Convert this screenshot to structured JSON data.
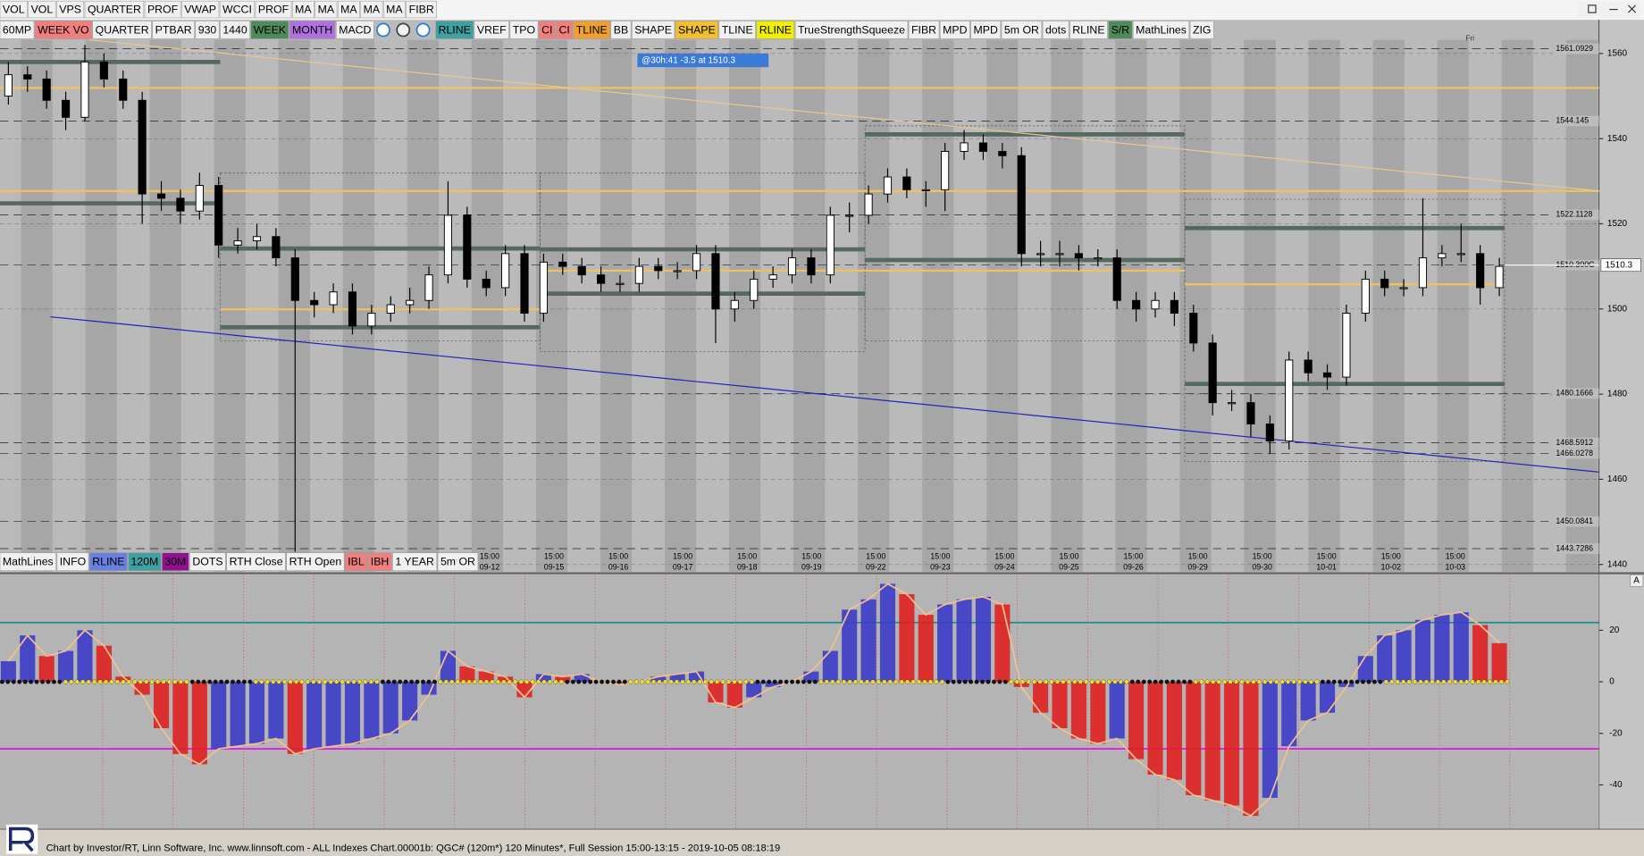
{
  "toolbar_top": [
    {
      "label": "VOL"
    },
    {
      "label": "VOL"
    },
    {
      "label": "VPS"
    },
    {
      "label": "QUARTER"
    },
    {
      "label": "PROF"
    },
    {
      "label": "VWAP"
    },
    {
      "label": "WCCI"
    },
    {
      "label": "PROF"
    },
    {
      "label": "MA"
    },
    {
      "label": "MA"
    },
    {
      "label": "MA"
    },
    {
      "label": "MA"
    },
    {
      "label": "MA"
    },
    {
      "label": "FIBR"
    }
  ],
  "toolbar_main": [
    {
      "label": "60MP"
    },
    {
      "label": "WEEK VO",
      "color": "#f08080"
    },
    {
      "label": "QUARTER"
    },
    {
      "label": "PTBAR"
    },
    {
      "label": "930"
    },
    {
      "label": "1440"
    },
    {
      "label": "WEEK",
      "color": "#4f8a5b"
    },
    {
      "label": "MONTH",
      "color": "#b070e0"
    },
    {
      "label": "MACD"
    },
    {
      "label": "RLINE",
      "color": "#40a0a0"
    },
    {
      "label": "VREF"
    },
    {
      "label": "TPO"
    },
    {
      "label": "CI",
      "color": "#f08080"
    },
    {
      "label": "CI",
      "color": "#f08080"
    },
    {
      "label": "TLINE",
      "color": "#f0a030"
    },
    {
      "label": "BB"
    },
    {
      "label": "SHAPE"
    },
    {
      "label": "SHAPE",
      "color": "#f0c030"
    },
    {
      "label": "TLINE"
    },
    {
      "label": "RLINE",
      "color": "#f0f000"
    },
    {
      "label": "TrueStrengthSqueeze"
    },
    {
      "label": "FIBR"
    },
    {
      "label": "MPD"
    },
    {
      "label": "MPD"
    },
    {
      "label": "5m OR"
    },
    {
      "label": "dots"
    },
    {
      "label": "RLINE"
    },
    {
      "label": "S/R",
      "color": "#4f8a5b"
    },
    {
      "label": "MathLines"
    },
    {
      "label": "ZIG"
    }
  ],
  "toolbar_bottom": [
    {
      "label": "MathLines"
    },
    {
      "label": "INFO"
    },
    {
      "label": "RLINE",
      "color": "#6a80e0"
    },
    {
      "label": "120M",
      "color": "#40a0a0"
    },
    {
      "label": "30M",
      "color": "#901090"
    },
    {
      "label": "DOTS"
    },
    {
      "label": "RTH Close"
    },
    {
      "label": "RTH Open"
    },
    {
      "label": "IBL",
      "color": "#f08080"
    },
    {
      "label": "IBH",
      "color": "#f08080"
    },
    {
      "label": "1 YEAR"
    },
    {
      "label": "5m OR"
    }
  ],
  "annotation": "@30h:41  -3.5 at 1510.3",
  "day_label": "Fri",
  "footer": "Chart by Investor/RT, Linn Software, Inc. www.linnsoft.com - ALL Indexes Chart.00001b: QGC# (120m*) 120 Minutes*, Full Session 15:00-13:15 - 2019-10-05 08:18:19",
  "chart_data": [
    {
      "type": "candlestick",
      "candles": [
        [
          1550,
          1558,
          1548,
          1555
        ],
        [
          1555,
          1557,
          1551,
          1554
        ],
        [
          1554,
          1556,
          1547,
          1549
        ],
        [
          1549,
          1551,
          1542,
          1545
        ],
        [
          1545,
          1562,
          1544,
          1558
        ],
        [
          1558,
          1560,
          1552,
          1554
        ],
        [
          1554,
          1556,
          1547,
          1549
        ],
        [
          1549,
          1551,
          1520,
          1527
        ],
        [
          1527,
          1530,
          1523,
          1526
        ],
        [
          1526,
          1528,
          1520,
          1523
        ],
        [
          1523,
          1532,
          1521,
          1529
        ],
        [
          1529,
          1531,
          1512,
          1515
        ],
        [
          1515,
          1519,
          1513,
          1516
        ],
        [
          1516,
          1520,
          1514,
          1517
        ],
        [
          1517,
          1519,
          1510,
          1512
        ],
        [
          1512,
          1514,
          1443,
          1502
        ],
        [
          1502,
          1504,
          1498,
          1501
        ],
        [
          1501,
          1506,
          1499,
          1504
        ],
        [
          1504,
          1506,
          1494,
          1496
        ],
        [
          1496,
          1501,
          1494,
          1499
        ],
        [
          1499,
          1503,
          1497,
          1501
        ],
        [
          1501,
          1505,
          1499,
          1502
        ],
        [
          1502,
          1510,
          1500,
          1508
        ],
        [
          1508,
          1530,
          1506,
          1522
        ],
        [
          1522,
          1524,
          1505,
          1507
        ],
        [
          1507,
          1509,
          1503,
          1505
        ],
        [
          1505,
          1515,
          1503,
          1513
        ],
        [
          1513,
          1515,
          1497,
          1499
        ],
        [
          1499,
          1513,
          1497,
          1511
        ],
        [
          1511,
          1513,
          1508,
          1510
        ],
        [
          1510,
          1512,
          1506,
          1508
        ],
        [
          1508,
          1510,
          1504,
          1506
        ],
        [
          1506,
          1508,
          1504,
          1506
        ],
        [
          1506,
          1512,
          1504,
          1510
        ],
        [
          1510,
          1512,
          1507,
          1509
        ],
        [
          1509,
          1511,
          1507,
          1509
        ],
        [
          1509,
          1515,
          1507,
          1513
        ],
        [
          1513,
          1515,
          1492,
          1500
        ],
        [
          1500,
          1504,
          1497,
          1502
        ],
        [
          1502,
          1509,
          1500,
          1507
        ],
        [
          1507,
          1510,
          1505,
          1508
        ],
        [
          1508,
          1514,
          1506,
          1512
        ],
        [
          1512,
          1514,
          1506,
          1508
        ],
        [
          1508,
          1524,
          1506,
          1522
        ],
        [
          1522,
          1525,
          1518,
          1522
        ],
        [
          1522,
          1529,
          1520,
          1527
        ],
        [
          1527,
          1533,
          1525,
          1531
        ],
        [
          1531,
          1533,
          1526,
          1528
        ],
        [
          1528,
          1530,
          1524,
          1528
        ],
        [
          1528,
          1539,
          1523,
          1537
        ],
        [
          1537,
          1542,
          1535,
          1539
        ],
        [
          1539,
          1541,
          1535,
          1537
        ],
        [
          1537,
          1539,
          1533,
          1536
        ],
        [
          1536,
          1538,
          1510,
          1513
        ],
        [
          1513,
          1516,
          1510,
          1513
        ],
        [
          1513,
          1516,
          1510,
          1513
        ],
        [
          1513,
          1515,
          1509,
          1512
        ],
        [
          1512,
          1514,
          1510,
          1512
        ],
        [
          1512,
          1514,
          1500,
          1502
        ],
        [
          1502,
          1504,
          1497,
          1500
        ],
        [
          1500,
          1504,
          1498,
          1502
        ],
        [
          1502,
          1504,
          1496,
          1499
        ],
        [
          1499,
          1501,
          1490,
          1492
        ],
        [
          1492,
          1494,
          1475,
          1478
        ],
        [
          1478,
          1481,
          1476,
          1478
        ],
        [
          1478,
          1480,
          1470,
          1473
        ],
        [
          1473,
          1475,
          1466,
          1469
        ],
        [
          1469,
          1490,
          1467,
          1488
        ],
        [
          1488,
          1490,
          1483,
          1485
        ],
        [
          1485,
          1487,
          1481,
          1484
        ],
        [
          1484,
          1501,
          1482,
          1499
        ],
        [
          1499,
          1509,
          1497,
          1507
        ],
        [
          1507,
          1509,
          1503,
          1505
        ],
        [
          1505,
          1507,
          1503,
          1505
        ],
        [
          1505,
          1526,
          1503,
          1512
        ],
        [
          1512,
          1515,
          1510,
          1513
        ],
        [
          1513,
          1520,
          1511,
          1513
        ],
        [
          1513,
          1515,
          1501,
          1505
        ],
        [
          1505,
          1512,
          1503,
          1510
        ]
      ],
      "up_color": "#ffffff",
      "down_color": "#000000",
      "ylim": [
        1438.3,
        1562.7
      ],
      "yticks": [
        1440,
        1460,
        1480,
        1500,
        1520,
        1540,
        1560
      ],
      "x_time": "15:00",
      "x_dates": [
        "09-12",
        "09-15",
        "09-16",
        "09-17",
        "09-18",
        "09-19",
        "09-22",
        "09-23",
        "09-24",
        "09-25",
        "09-26",
        "09-29",
        "09-30",
        "10-01",
        "10-02",
        "10-03"
      ],
      "levels": [
        {
          "price": 1551.9,
          "color": "#f0c060"
        },
        {
          "price": 1527.7,
          "color": "#f0c060"
        }
      ],
      "sessions": [
        {
          "levels": [
            {
              "price": 1558,
              "color": "#56695f"
            },
            {
              "price": 1524.8,
              "color": "#56695f"
            }
          ]
        },
        {
          "levels": [
            {
              "price": 1514.2,
              "color": "#56695f"
            },
            {
              "price": 1495.7,
              "color": "#56695f"
            },
            {
              "price": 1499.9,
              "color": "#f0c060"
            }
          ]
        },
        {
          "levels": [
            {
              "price": 1514,
              "color": "#56695f"
            },
            {
              "price": 1503.6,
              "color": "#56695f"
            },
            {
              "price": 1509,
              "color": "#f0c060"
            }
          ]
        },
        {
          "levels": [
            {
              "price": 1541,
              "color": "#56695f"
            },
            {
              "price": 1511.5,
              "color": "#56695f"
            },
            {
              "price": 1509,
              "color": "#f0c060"
            }
          ]
        },
        {
          "levels": [
            {
              "price": 1519,
              "color": "#56695f"
            },
            {
              "price": 1482.4,
              "color": "#56695f"
            },
            {
              "price": 1505.8,
              "color": "#f0c060"
            }
          ]
        }
      ],
      "price_labels": [
        1561.0929,
        1544.145,
        1522.1128,
        {
          "value": 1510.3,
          "label": "1510.300C"
        },
        1480.1666,
        1468.5912,
        1466.0278,
        1450.0841,
        1443.7286
      ],
      "last_price": 1510.3
    },
    {
      "type": "oscillator",
      "values": [
        8,
        18,
        10,
        12,
        20,
        14,
        2,
        -5,
        -18,
        -28,
        -32,
        -26,
        -25,
        -24,
        -22,
        -28,
        -26,
        -25,
        -24,
        -22,
        -20,
        -15,
        -5,
        12,
        6,
        4,
        2,
        -6,
        3,
        2,
        3,
        0,
        -1,
        0,
        2,
        3,
        4,
        -8,
        -10,
        -6,
        -2,
        0,
        4,
        12,
        28,
        32,
        38,
        34,
        26,
        30,
        32,
        33,
        30,
        -2,
        -12,
        -18,
        -22,
        -24,
        -22,
        -30,
        -36,
        -38,
        -44,
        -46,
        -48,
        -52,
        -45,
        -25,
        -15,
        -12,
        -2,
        10,
        18,
        20,
        24,
        26,
        27,
        22,
        15
      ],
      "up_color": "#3c3cc8",
      "down_color": "#e02020",
      "envelope_color": "#f0c090",
      "ref_lines": [
        {
          "value": 23,
          "color": "#1f8c8c"
        },
        {
          "value": -26,
          "color": "#e020e0"
        }
      ],
      "ylim": [
        -57,
        41.5
      ],
      "yticks": [
        -40,
        -20,
        0,
        20
      ],
      "x_label": "15:00",
      "corner_label": "A"
    }
  ]
}
